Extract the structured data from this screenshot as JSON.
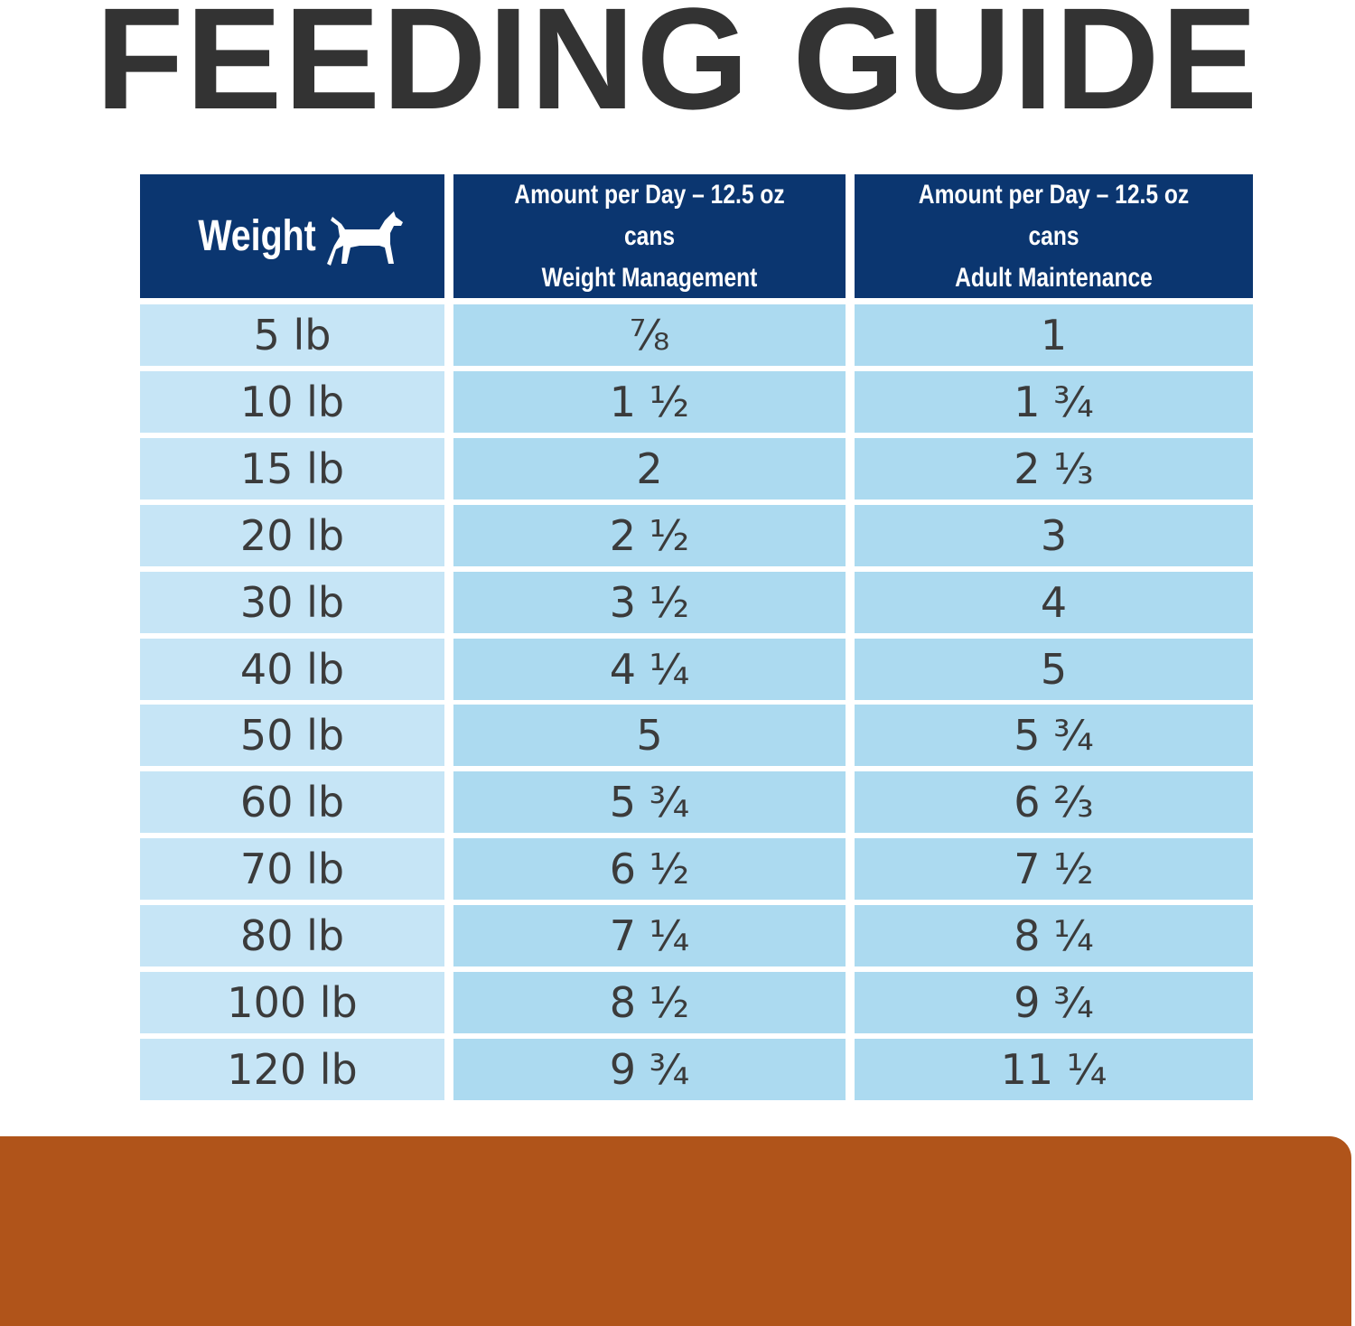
{
  "title": "FEEDING GUIDE",
  "table": {
    "header": [
      "Weight",
      "Amount per Day – 12.5 oz cans\nWeight Management",
      "Amount per Day – 12.5 oz cans\nAdult Maintenance"
    ],
    "rows": [
      [
        "5 lb",
        "⅞",
        "1"
      ],
      [
        "10 lb",
        "1 ½",
        "1 ¾"
      ],
      [
        "15 lb",
        "2",
        "2 ⅓"
      ],
      [
        "20 lb",
        "2 ½",
        "3"
      ],
      [
        "30 lb",
        "3 ½",
        "4"
      ],
      [
        "40 lb",
        "4 ¼",
        "5"
      ],
      [
        "50 lb",
        "5",
        "5 ¾"
      ],
      [
        "60 lb",
        "5 ¾",
        "6 ⅔"
      ],
      [
        "70 lb",
        "6 ½",
        "7 ½"
      ],
      [
        "80 lb",
        "7 ¼",
        "8 ¼"
      ],
      [
        "100 lb",
        "8 ½",
        "9 ¾"
      ],
      [
        "120 lb",
        "9 ¾",
        "11 ¼"
      ]
    ]
  }
}
